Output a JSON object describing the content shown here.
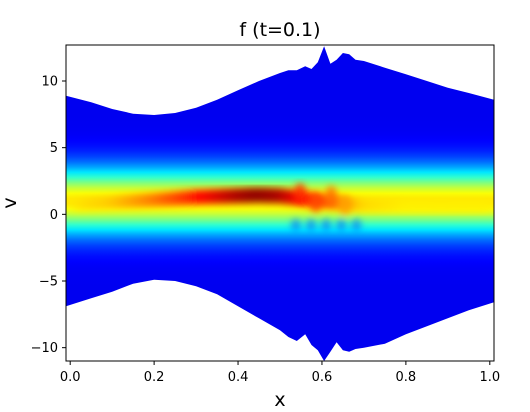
{
  "chart_data": {
    "type": "heatmap",
    "title": "f (t=0.1)",
    "xlabel": "x",
    "ylabel": "v",
    "xlim": [
      -0.01,
      1.01
    ],
    "ylim": [
      -11,
      12.7
    ],
    "xticks": [
      0.0,
      0.2,
      0.4,
      0.6,
      0.8,
      1.0
    ],
    "xtick_labels": [
      "0.0",
      "0.2",
      "0.4",
      "0.6",
      "0.8",
      "1.0"
    ],
    "yticks": [
      -10,
      -5,
      0,
      5,
      10
    ],
    "ytick_labels": [
      "−10",
      "−5",
      "0",
      "5",
      "10"
    ],
    "colormap": "jet",
    "grid": false,
    "legend": "none",
    "upper_boundary": {
      "x": [
        -0.01,
        0.05,
        0.1,
        0.15,
        0.2,
        0.25,
        0.3,
        0.35,
        0.4,
        0.45,
        0.5,
        0.52,
        0.54,
        0.56,
        0.575,
        0.59,
        0.605,
        0.62,
        0.635,
        0.65,
        0.665,
        0.68,
        0.7,
        0.75,
        0.8,
        0.85,
        0.9,
        0.95,
        1.01
      ],
      "v": [
        8.9,
        8.4,
        7.9,
        7.55,
        7.45,
        7.6,
        8.0,
        8.6,
        9.3,
        10.0,
        10.6,
        10.8,
        10.8,
        11.1,
        10.9,
        11.4,
        12.6,
        11.3,
        11.6,
        12.1,
        12.0,
        11.6,
        11.5,
        11.0,
        10.5,
        10.0,
        9.5,
        9.1,
        8.6
      ]
    },
    "lower_boundary": {
      "x": [
        -0.01,
        0.05,
        0.1,
        0.15,
        0.2,
        0.25,
        0.3,
        0.35,
        0.4,
        0.45,
        0.5,
        0.52,
        0.54,
        0.56,
        0.575,
        0.59,
        0.605,
        0.62,
        0.635,
        0.65,
        0.665,
        0.68,
        0.7,
        0.75,
        0.8,
        0.85,
        0.9,
        0.95,
        1.01
      ],
      "v": [
        -6.9,
        -6.3,
        -5.8,
        -5.2,
        -4.9,
        -5.0,
        -5.4,
        -6.0,
        -6.9,
        -7.8,
        -8.7,
        -9.2,
        -9.5,
        -9.0,
        -9.8,
        -10.2,
        -11.0,
        -10.3,
        -9.6,
        -10.2,
        -10.3,
        -10.1,
        -10.0,
        -9.7,
        -9.0,
        -8.4,
        -7.8,
        -7.2,
        -6.6
      ]
    },
    "core_peak": {
      "x": [
        -0.01,
        0.1,
        0.2,
        0.3,
        0.4,
        0.45,
        0.5,
        0.55,
        0.6,
        0.65,
        0.7,
        0.8,
        0.9,
        1.01
      ],
      "v_center": [
        0.7,
        0.9,
        1.1,
        1.3,
        1.4,
        1.45,
        1.4,
        1.2,
        1.0,
        0.8,
        0.65,
        0.6,
        0.6,
        0.6
      ],
      "peak_value": [
        0.55,
        0.6,
        0.7,
        0.82,
        0.94,
        0.98,
        0.95,
        0.85,
        0.78,
        0.68,
        0.58,
        0.55,
        0.55,
        0.55
      ]
    },
    "oscillation_region": {
      "x_range": [
        0.52,
        0.7
      ]
    }
  }
}
